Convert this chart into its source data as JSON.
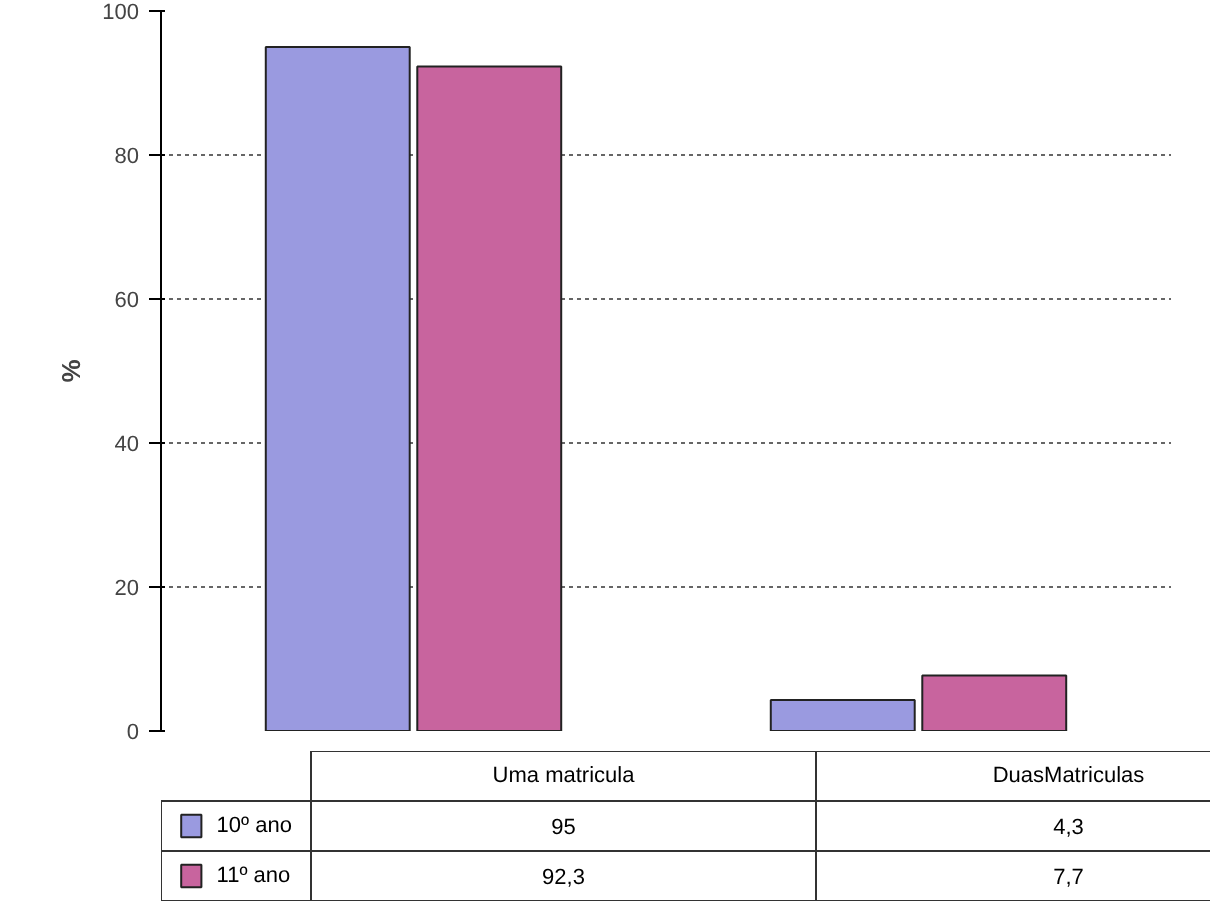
{
  "chart_data": {
    "type": "bar",
    "ylabel": "%",
    "categories": [
      "Uma matricula",
      "DuasMatriculas"
    ],
    "series": [
      {
        "name": "10º ano",
        "color": "#9a9ae0",
        "values": [
          95,
          4.3
        ],
        "value_labels": [
          "95",
          "4,3"
        ]
      },
      {
        "name": "11º ano",
        "color": "#c8649e",
        "values": [
          92.3,
          7.7
        ],
        "value_labels": [
          "92,3",
          "7,7"
        ]
      }
    ],
    "ylim": [
      0,
      100
    ],
    "yticks": [
      0,
      20,
      40,
      60,
      80,
      100
    ],
    "grid": "y",
    "legend": "bottom"
  }
}
